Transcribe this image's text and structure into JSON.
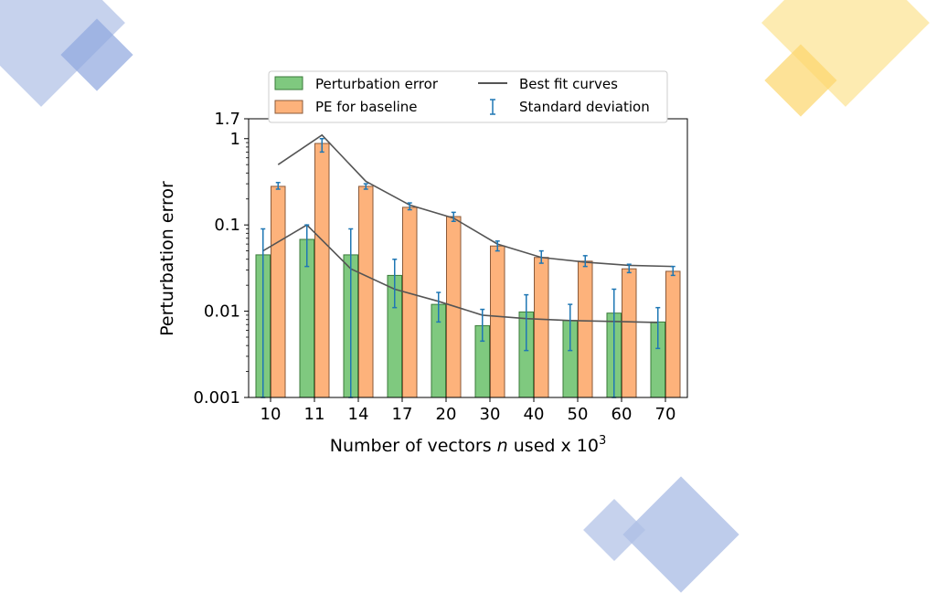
{
  "colors": {
    "pe_fill": "#7fc97f",
    "pe_edge": "#3a7a3a",
    "base_fill": "#fdb27b",
    "base_edge": "#8a5a3a",
    "fit": "#555555",
    "err": "#1f77b4",
    "deco_blue": "#aebfe6",
    "deco_blue_dark": "#8fa6de",
    "deco_yellow": "#fde8a3",
    "deco_yellow_dark": "#fcd66b"
  },
  "chart_data": {
    "type": "bar",
    "xlabel": "Number of vectors ",
    "xlabel_var": "n",
    "xlabel_suffix": " used x 10",
    "xlabel_exp": "3",
    "ylabel": "Perturbation error",
    "yscale": "log",
    "ylim": [
      0.001,
      1.7
    ],
    "yticks": [
      {
        "value": 1.7,
        "label": "1.7"
      },
      {
        "value": 1,
        "label": "1"
      },
      {
        "value": 0.1,
        "label": "0.1"
      },
      {
        "value": 0.01,
        "label": "0.01"
      },
      {
        "value": 0.001,
        "label": "0.001"
      }
    ],
    "categories": [
      "10",
      "11",
      "14",
      "17",
      "20",
      "30",
      "40",
      "50",
      "60",
      "70"
    ],
    "series": [
      {
        "name": "Perturbation error",
        "values": [
          0.045,
          0.068,
          0.045,
          0.026,
          0.012,
          0.0068,
          0.0098,
          0.0078,
          0.0095,
          0.0075
        ],
        "err_low": [
          0.001,
          0.033,
          0.001,
          0.011,
          0.0075,
          0.0045,
          0.0035,
          0.0035,
          0.001,
          0.0037
        ],
        "err_high": [
          0.09,
          0.1,
          0.09,
          0.04,
          0.0165,
          0.0105,
          0.0155,
          0.012,
          0.018,
          0.011
        ]
      },
      {
        "name": "PE for baseline",
        "values": [
          0.28,
          0.88,
          0.28,
          0.16,
          0.125,
          0.057,
          0.042,
          0.038,
          0.031,
          0.029
        ],
        "err_low": [
          0.26,
          0.7,
          0.26,
          0.15,
          0.11,
          0.05,
          0.036,
          0.033,
          0.028,
          0.026
        ],
        "err_high": [
          0.31,
          1.0,
          0.3,
          0.18,
          0.14,
          0.065,
          0.05,
          0.044,
          0.035,
          0.033
        ]
      }
    ],
    "fit_curves": [
      {
        "values": [
          0.05,
          0.1,
          0.031,
          0.018,
          0.013,
          0.009,
          0.0082,
          0.0078,
          0.0076,
          0.0074
        ]
      },
      {
        "values": [
          0.5,
          1.1,
          0.32,
          0.17,
          0.12,
          0.06,
          0.042,
          0.037,
          0.034,
          0.033
        ]
      }
    ],
    "legend": {
      "placement": "top",
      "entries": [
        {
          "label": "Perturbation error",
          "kind": "pe_bar"
        },
        {
          "label": "Best fit curves",
          "kind": "line"
        },
        {
          "label": "PE for baseline",
          "kind": "base_bar"
        },
        {
          "label": "Standard deviation",
          "kind": "errorbar"
        }
      ]
    },
    "grid": false
  }
}
